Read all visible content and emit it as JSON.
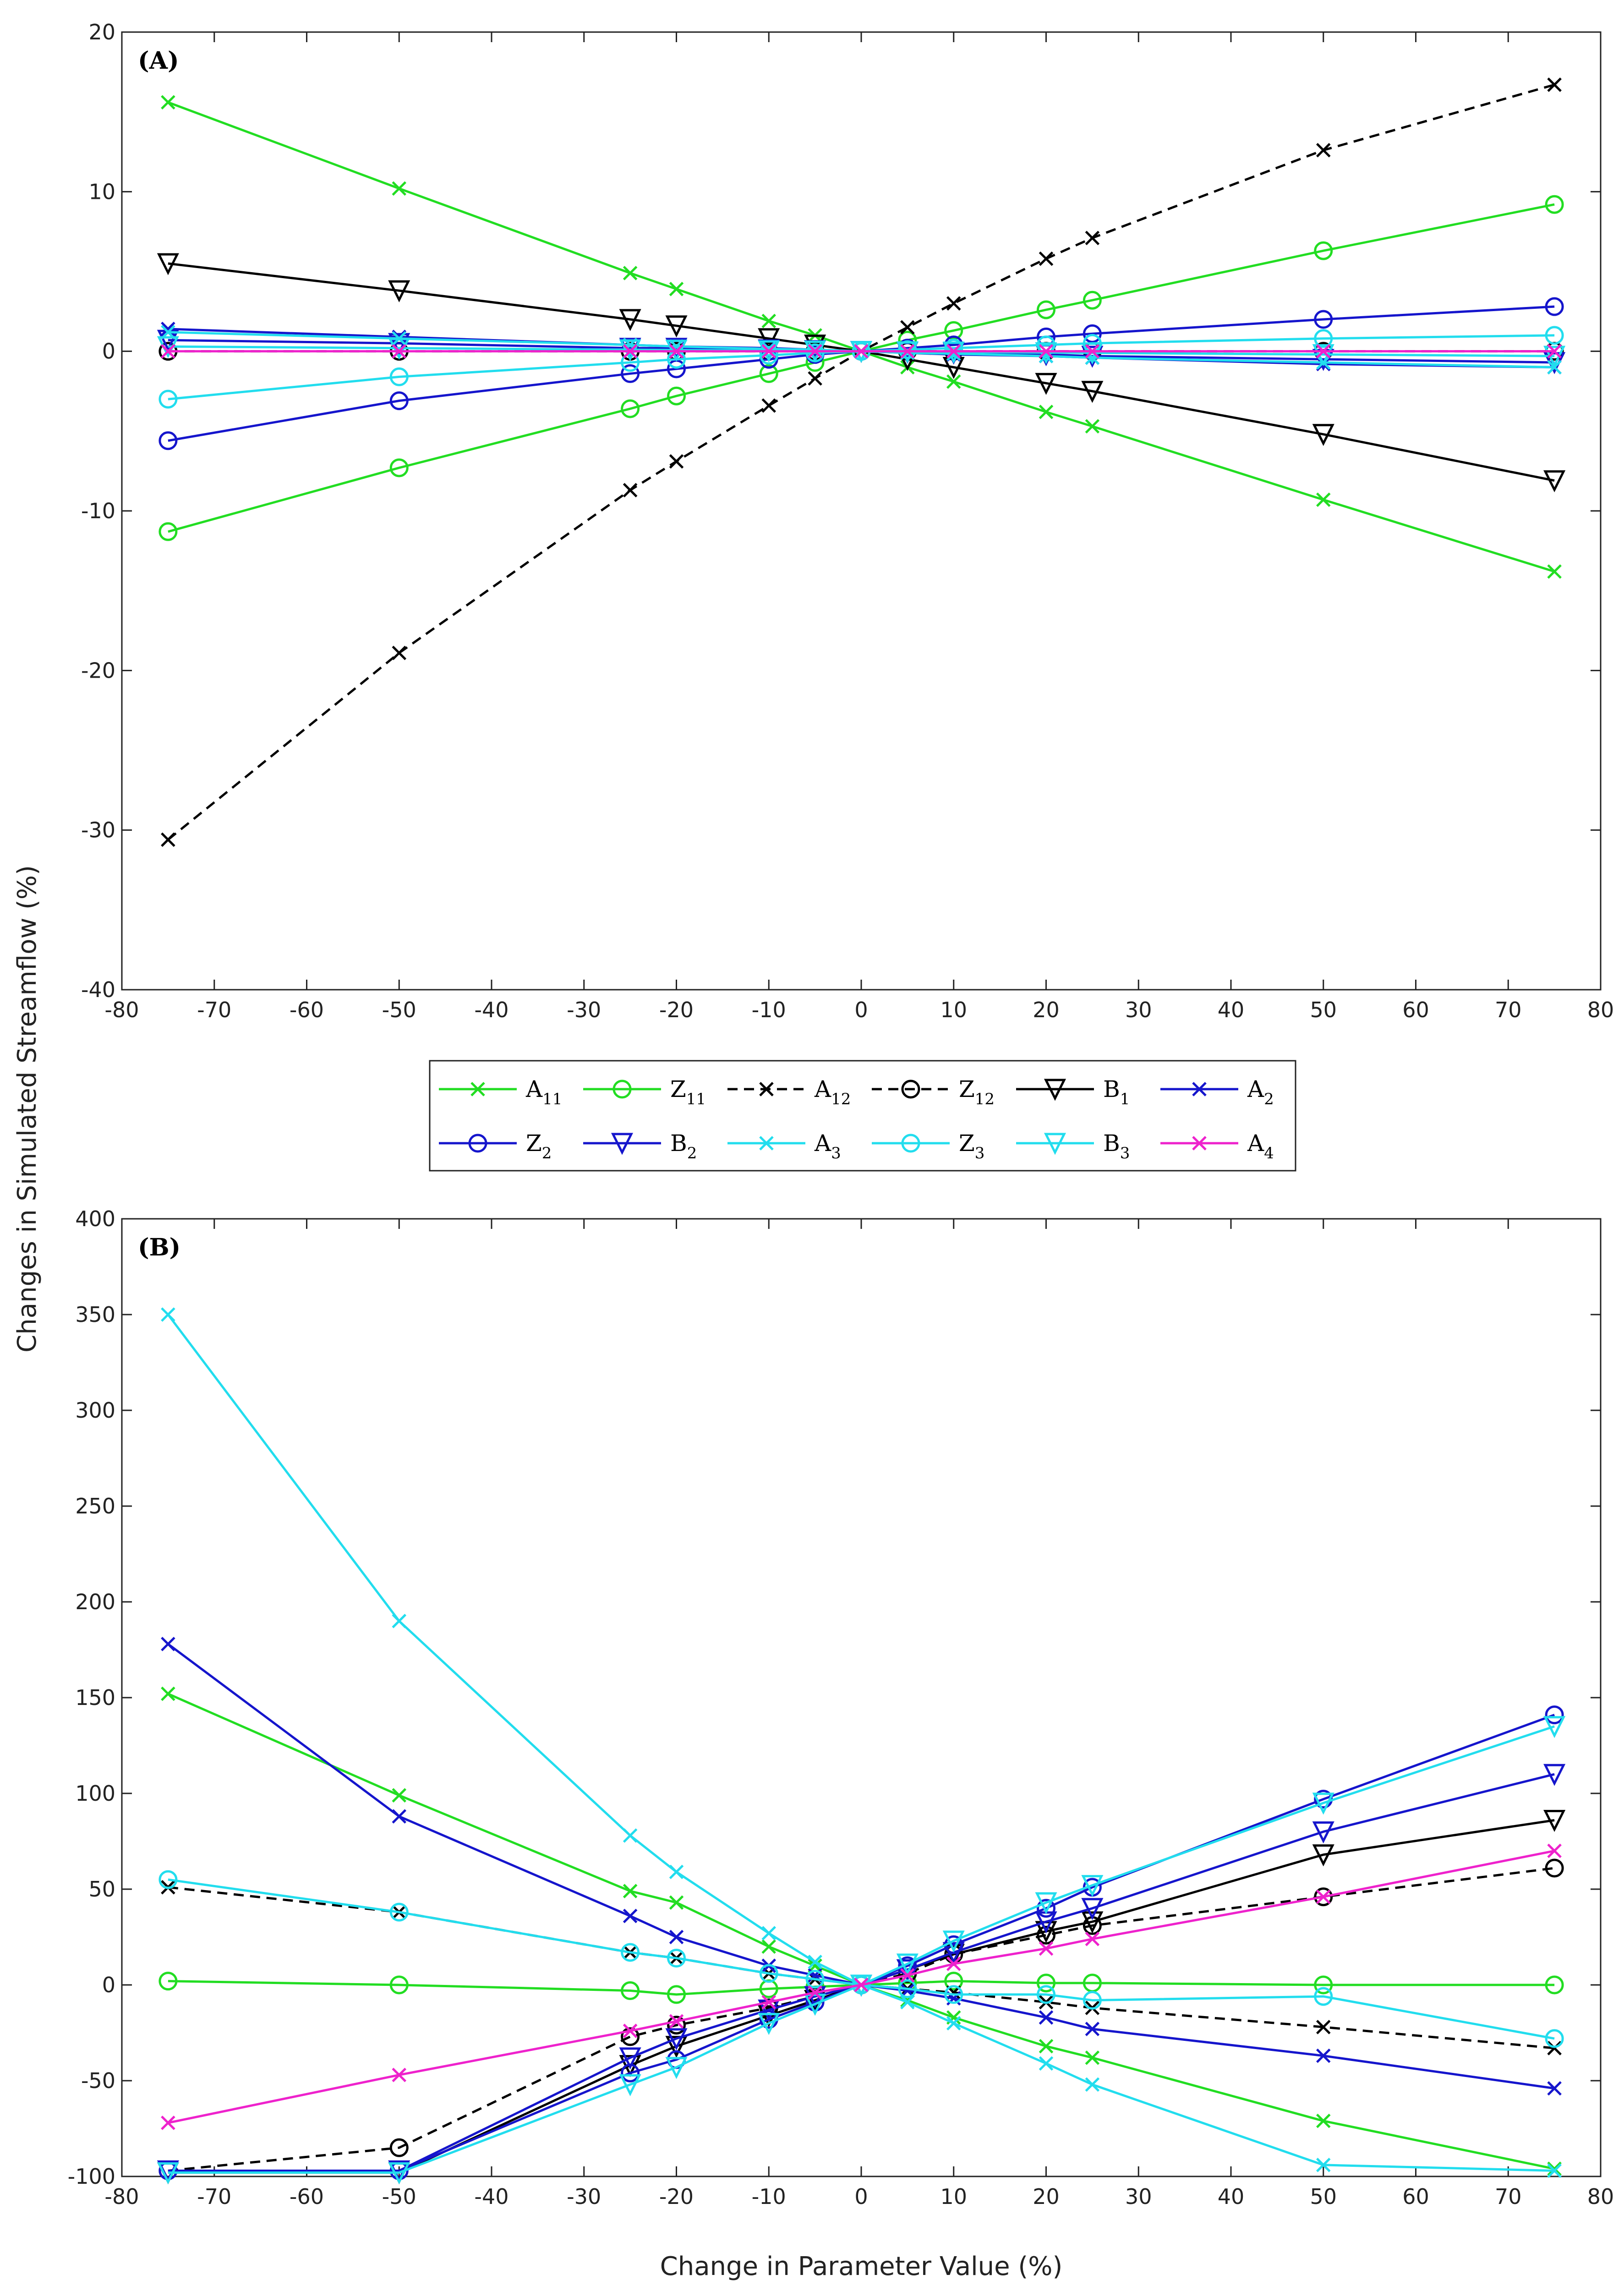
{
  "chart_data": {
    "type": "line",
    "ylabel": "Changes in Simulated Streamflow (%)",
    "xlabel": "Change in Parameter Value (%)",
    "xlim": [
      -80,
      80
    ],
    "xticks": [
      -80,
      -70,
      -60,
      -50,
      -40,
      -30,
      -20,
      -10,
      0,
      10,
      20,
      30,
      40,
      50,
      60,
      70,
      80
    ],
    "x": [
      -75,
      -50,
      -25,
      -20,
      -10,
      -5,
      0,
      5,
      10,
      20,
      25,
      50,
      75
    ],
    "legend": [
      {
        "key": "A11",
        "main": "A",
        "sub": "11"
      },
      {
        "key": "Z11",
        "main": "Z",
        "sub": "11"
      },
      {
        "key": "A12",
        "main": "A",
        "sub": "12"
      },
      {
        "key": "Z12",
        "main": "Z",
        "sub": "12"
      },
      {
        "key": "B1",
        "main": "B",
        "sub": "1"
      },
      {
        "key": "A2",
        "main": "A",
        "sub": "2"
      },
      {
        "key": "Z2",
        "main": "Z",
        "sub": "2"
      },
      {
        "key": "B2",
        "main": "B",
        "sub": "2"
      },
      {
        "key": "A3",
        "main": "A",
        "sub": "3"
      },
      {
        "key": "Z3",
        "main": "Z",
        "sub": "3"
      },
      {
        "key": "B3",
        "main": "B",
        "sub": "3"
      },
      {
        "key": "A4",
        "main": "A",
        "sub": "4"
      }
    ],
    "styles": {
      "A11": {
        "color": "#22dd22",
        "marker": "x",
        "dash": false
      },
      "Z11": {
        "color": "#22dd22",
        "marker": "o",
        "dash": false
      },
      "A12": {
        "color": "#000000",
        "marker": "x",
        "dash": true
      },
      "Z12": {
        "color": "#000000",
        "marker": "o",
        "dash": true
      },
      "B1": {
        "color": "#000000",
        "marker": "v",
        "dash": false
      },
      "A2": {
        "color": "#1515cc",
        "marker": "x",
        "dash": false
      },
      "Z2": {
        "color": "#1515cc",
        "marker": "o",
        "dash": false
      },
      "B2": {
        "color": "#1515cc",
        "marker": "v",
        "dash": false
      },
      "A3": {
        "color": "#22ddee",
        "marker": "x",
        "dash": false
      },
      "Z3": {
        "color": "#22ddee",
        "marker": "o",
        "dash": false
      },
      "B3": {
        "color": "#22ddee",
        "marker": "v",
        "dash": false
      },
      "A4": {
        "color": "#ee22cc",
        "marker": "x",
        "dash": false
      }
    },
    "panels": [
      {
        "label": "(A)",
        "ylim": [
          -40,
          20
        ],
        "yticks": [
          -40,
          -30,
          -20,
          -10,
          0,
          10,
          20
        ],
        "series": [
          {
            "name": "A11",
            "values": [
              15.6,
              10.2,
              4.9,
              3.9,
              1.9,
              1.0,
              0,
              -1.0,
              -1.9,
              -3.8,
              -4.7,
              -9.3,
              -13.8
            ]
          },
          {
            "name": "Z11",
            "values": [
              -11.3,
              -7.3,
              -3.6,
              -2.8,
              -1.4,
              -0.7,
              0,
              0.7,
              1.3,
              2.6,
              3.2,
              6.3,
              9.2
            ]
          },
          {
            "name": "A12",
            "values": [
              -30.6,
              -18.9,
              -8.7,
              -6.9,
              -3.4,
              -1.7,
              0,
              1.5,
              3.0,
              5.8,
              7.1,
              12.6,
              16.7
            ]
          },
          {
            "name": "Z12",
            "values": [
              0,
              0,
              0,
              0,
              0,
              0,
              0,
              0,
              0,
              0,
              0,
              0,
              0
            ]
          },
          {
            "name": "B1",
            "values": [
              5.5,
              3.8,
              2.0,
              1.6,
              0.8,
              0.4,
              0,
              -0.5,
              -1.0,
              -2.0,
              -2.5,
              -5.2,
              -8.1
            ]
          },
          {
            "name": "A2",
            "values": [
              1.4,
              0.9,
              0.4,
              0.3,
              0.2,
              0.1,
              0,
              -0.1,
              -0.2,
              -0.3,
              -0.4,
              -0.8,
              -1.0
            ]
          },
          {
            "name": "Z2",
            "values": [
              -5.6,
              -3.1,
              -1.4,
              -1.1,
              -0.5,
              -0.2,
              0,
              0.2,
              0.4,
              0.9,
              1.1,
              2.0,
              2.8
            ]
          },
          {
            "name": "B2",
            "values": [
              0.7,
              0.5,
              0.2,
              0.2,
              0.1,
              0.05,
              0,
              -0.05,
              -0.1,
              -0.2,
              -0.3,
              -0.5,
              -0.7
            ]
          },
          {
            "name": "A3",
            "values": [
              1.2,
              0.8,
              0.4,
              0.3,
              0.15,
              0.1,
              0,
              -0.1,
              -0.15,
              -0.3,
              -0.4,
              -0.7,
              -1.0
            ]
          },
          {
            "name": "Z3",
            "values": [
              -3.0,
              -1.6,
              -0.7,
              -0.5,
              -0.25,
              -0.1,
              0,
              0.1,
              0.2,
              0.4,
              0.5,
              0.8,
              1.0
            ]
          },
          {
            "name": "B3",
            "values": [
              0.3,
              0.2,
              0.1,
              0.08,
              0.04,
              0.02,
              0,
              -0.02,
              -0.04,
              -0.08,
              -0.1,
              -0.2,
              -0.3
            ]
          },
          {
            "name": "A4",
            "values": [
              0,
              0,
              0,
              0,
              0,
              0,
              0,
              0,
              0,
              0,
              0,
              0,
              0
            ]
          }
        ]
      },
      {
        "label": "(B)",
        "ylim": [
          -100,
          400
        ],
        "yticks": [
          -100,
          -50,
          0,
          50,
          100,
          150,
          200,
          250,
          300,
          350,
          400
        ],
        "series": [
          {
            "name": "A11",
            "values": [
              152,
              99,
              49,
              43,
              20,
              10,
              0,
              -8,
              -17,
              -32,
              -38,
              -71,
              -96
            ]
          },
          {
            "name": "Z11",
            "values": [
              2,
              0,
              -3,
              -5,
              -2,
              -1,
              0,
              1,
              2,
              1,
              1,
              0,
              0
            ]
          },
          {
            "name": "A12",
            "values": [
              51,
              38,
              17,
              14,
              6,
              3,
              0,
              -2,
              -4,
              -9,
              -12,
              -22,
              -33
            ]
          },
          {
            "name": "Z12",
            "values": [
              -97,
              -85,
              -27,
              -21,
              -12,
              -6,
              0,
              6,
              16,
              26,
              31,
              46,
              61
            ]
          },
          {
            "name": "B1",
            "values": [
              -98,
              -98,
              -42,
              -32,
              -16,
              -8,
              0,
              8,
              16,
              28,
              33,
              68,
              86
            ]
          },
          {
            "name": "A2",
            "values": [
              178,
              88,
              36,
              25,
              10,
              5,
              0,
              -3,
              -7,
              -17,
              -23,
              -37,
              -54
            ]
          },
          {
            "name": "Z2",
            "values": [
              -97,
              -97,
              -46,
              -39,
              -18,
              -9,
              0,
              10,
              21,
              40,
              51,
              97,
              141
            ]
          },
          {
            "name": "B2",
            "values": [
              -97,
              -97,
              -38,
              -28,
              -13,
              -6,
              0,
              8,
              17,
              33,
              40,
              80,
              110
            ]
          },
          {
            "name": "A3",
            "values": [
              350,
              190,
              78,
              59,
              27,
              12,
              0,
              -9,
              -20,
              -41,
              -52,
              -94,
              -97
            ]
          },
          {
            "name": "Z3",
            "values": [
              55,
              38,
              17,
              14,
              6,
              3,
              0,
              -2,
              -5,
              -5,
              -8,
              -6,
              -28
            ]
          },
          {
            "name": "B3",
            "values": [
              -98,
              -98,
              -52,
              -43,
              -20,
              -10,
              0,
              11,
              23,
              43,
              52,
              95,
              135
            ]
          },
          {
            "name": "A4",
            "values": [
              -72,
              -47,
              -24,
              -19,
              -9,
              -4,
              0,
              5,
              11,
              19,
              24,
              46,
              70
            ]
          }
        ]
      }
    ]
  }
}
